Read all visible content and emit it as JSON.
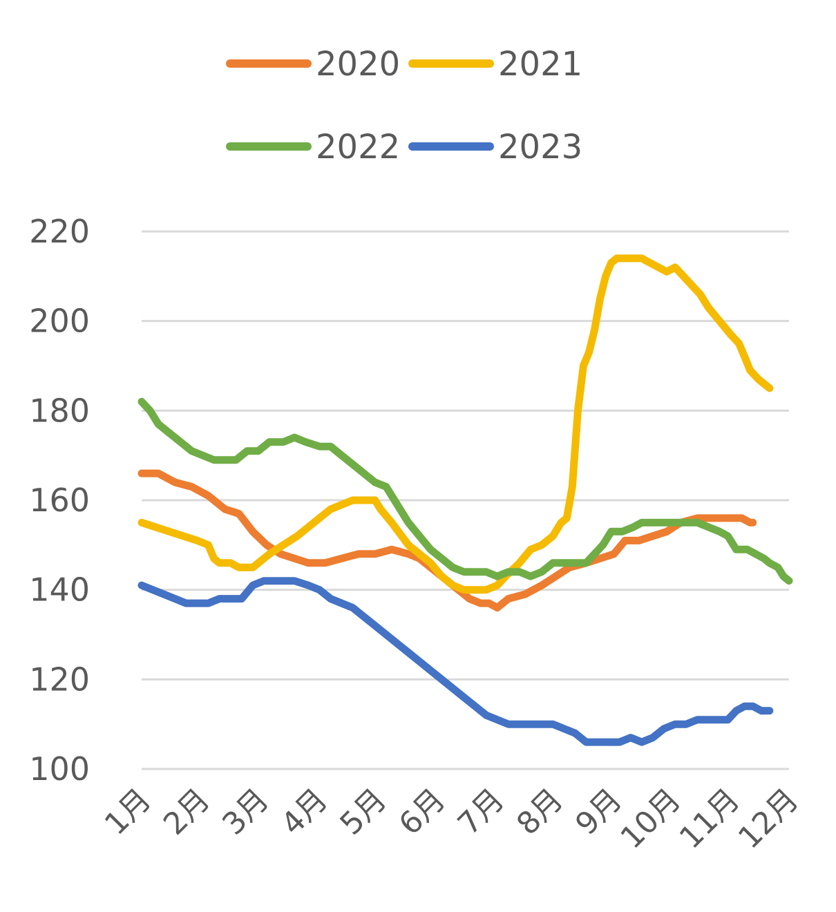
{
  "chart_data": {
    "type": "line",
    "title": "",
    "xlabel": "",
    "ylabel": "",
    "categories": [
      "1月",
      "2月",
      "3月",
      "4月",
      "5月",
      "6月",
      "7月",
      "8月",
      "9月",
      "10月",
      "11月",
      "12月"
    ],
    "y_ticks": [
      "100",
      "120",
      "140",
      "160",
      "180",
      "200",
      "220"
    ],
    "ylim": [
      100,
      220
    ],
    "grid": "horizontal",
    "legend_position": "top-center",
    "series": [
      {
        "name": "2020",
        "color": "#ed7d31",
        "points": [
          [
            1.0,
            166
          ],
          [
            1.3,
            166
          ],
          [
            1.6,
            164
          ],
          [
            1.9,
            163
          ],
          [
            2.2,
            161
          ],
          [
            2.5,
            158
          ],
          [
            2.75,
            157
          ],
          [
            3.0,
            153
          ],
          [
            3.25,
            150
          ],
          [
            3.5,
            148
          ],
          [
            3.75,
            147
          ],
          [
            4.0,
            146
          ],
          [
            4.3,
            146
          ],
          [
            4.6,
            147
          ],
          [
            4.9,
            148
          ],
          [
            5.2,
            148
          ],
          [
            5.5,
            149
          ],
          [
            5.8,
            148
          ],
          [
            6.0,
            147
          ],
          [
            6.3,
            144
          ],
          [
            6.6,
            141
          ],
          [
            6.9,
            138
          ],
          [
            7.1,
            137
          ],
          [
            7.25,
            137
          ],
          [
            7.4,
            136
          ],
          [
            7.6,
            138
          ],
          [
            7.9,
            139
          ],
          [
            8.2,
            141
          ],
          [
            8.45,
            143
          ],
          [
            8.7,
            145
          ],
          [
            9.0,
            146
          ],
          [
            9.25,
            147
          ],
          [
            9.5,
            148
          ],
          [
            9.7,
            151
          ],
          [
            9.95,
            151
          ],
          [
            10.2,
            152
          ],
          [
            10.45,
            153
          ],
          [
            10.7,
            155
          ],
          [
            11.0,
            156
          ],
          [
            11.3,
            156
          ],
          [
            11.6,
            156
          ],
          [
            11.8,
            156
          ],
          [
            11.95,
            155
          ],
          [
            12.0,
            155
          ]
        ]
      },
      {
        "name": "2021",
        "color": "#f5bb00",
        "points": [
          [
            1.0,
            155
          ],
          [
            1.25,
            154
          ],
          [
            1.5,
            153
          ],
          [
            1.75,
            152
          ],
          [
            2.0,
            151
          ],
          [
            2.2,
            150
          ],
          [
            2.3,
            147
          ],
          [
            2.4,
            146
          ],
          [
            2.6,
            146
          ],
          [
            2.75,
            145
          ],
          [
            3.0,
            145
          ],
          [
            3.1,
            146
          ],
          [
            3.3,
            148
          ],
          [
            3.55,
            150
          ],
          [
            3.8,
            152
          ],
          [
            4.0,
            154
          ],
          [
            4.2,
            156
          ],
          [
            4.4,
            158
          ],
          [
            4.6,
            159
          ],
          [
            4.8,
            160
          ],
          [
            5.0,
            160
          ],
          [
            5.2,
            160
          ],
          [
            5.3,
            158
          ],
          [
            5.5,
            155
          ],
          [
            5.8,
            150
          ],
          [
            6.0,
            148
          ],
          [
            6.2,
            146
          ],
          [
            6.4,
            143
          ],
          [
            6.6,
            141
          ],
          [
            6.8,
            140
          ],
          [
            7.0,
            140
          ],
          [
            7.2,
            140
          ],
          [
            7.4,
            141
          ],
          [
            7.55,
            143
          ],
          [
            7.8,
            146
          ],
          [
            8.0,
            149
          ],
          [
            8.2,
            150
          ],
          [
            8.4,
            152
          ],
          [
            8.55,
            155
          ],
          [
            8.65,
            156
          ],
          [
            8.75,
            163
          ],
          [
            8.85,
            180
          ],
          [
            8.95,
            190
          ],
          [
            9.05,
            193
          ],
          [
            9.15,
            198
          ],
          [
            9.25,
            205
          ],
          [
            9.35,
            210
          ],
          [
            9.45,
            213
          ],
          [
            9.55,
            214
          ],
          [
            9.75,
            214
          ],
          [
            10.0,
            214
          ],
          [
            10.15,
            213
          ],
          [
            10.3,
            212
          ],
          [
            10.45,
            211
          ],
          [
            10.6,
            212
          ],
          [
            10.75,
            210
          ],
          [
            10.9,
            208
          ],
          [
            11.05,
            206
          ],
          [
            11.2,
            203
          ],
          [
            11.4,
            200
          ],
          [
            11.6,
            197
          ],
          [
            11.75,
            195
          ],
          [
            11.85,
            192
          ],
          [
            11.95,
            189
          ],
          [
            12.1,
            187
          ],
          [
            12.2,
            186
          ],
          [
            12.3,
            185
          ]
        ]
      },
      {
        "name": "2022",
        "color": "#70ad47",
        "points": [
          [
            1.0,
            182
          ],
          [
            1.15,
            180
          ],
          [
            1.3,
            177
          ],
          [
            1.5,
            175
          ],
          [
            1.7,
            173
          ],
          [
            1.9,
            171
          ],
          [
            2.1,
            170
          ],
          [
            2.3,
            169
          ],
          [
            2.5,
            169
          ],
          [
            2.7,
            169
          ],
          [
            2.9,
            171
          ],
          [
            3.1,
            171
          ],
          [
            3.3,
            173
          ],
          [
            3.55,
            173
          ],
          [
            3.75,
            174
          ],
          [
            3.95,
            173
          ],
          [
            4.2,
            172
          ],
          [
            4.4,
            172
          ],
          [
            4.6,
            170
          ],
          [
            4.8,
            168
          ],
          [
            5.0,
            166
          ],
          [
            5.2,
            164
          ],
          [
            5.4,
            163
          ],
          [
            5.6,
            159
          ],
          [
            5.8,
            155
          ],
          [
            6.0,
            152
          ],
          [
            6.2,
            149
          ],
          [
            6.4,
            147
          ],
          [
            6.6,
            145
          ],
          [
            6.8,
            144
          ],
          [
            7.0,
            144
          ],
          [
            7.2,
            144
          ],
          [
            7.4,
            143
          ],
          [
            7.6,
            144
          ],
          [
            7.8,
            144
          ],
          [
            8.0,
            143
          ],
          [
            8.2,
            144
          ],
          [
            8.4,
            146
          ],
          [
            8.6,
            146
          ],
          [
            8.8,
            146
          ],
          [
            9.0,
            146
          ],
          [
            9.15,
            148
          ],
          [
            9.3,
            150
          ],
          [
            9.45,
            153
          ],
          [
            9.65,
            153
          ],
          [
            9.85,
            154
          ],
          [
            10.0,
            155
          ],
          [
            10.2,
            155
          ],
          [
            10.5,
            155
          ],
          [
            10.8,
            155
          ],
          [
            11.0,
            155
          ],
          [
            11.2,
            154
          ],
          [
            11.4,
            153
          ],
          [
            11.55,
            152
          ],
          [
            11.7,
            149
          ],
          [
            11.9,
            149
          ],
          [
            12.05,
            148
          ],
          [
            12.2,
            147
          ],
          [
            12.3,
            146
          ],
          [
            12.45,
            145
          ],
          [
            12.55,
            143
          ],
          [
            12.65,
            142
          ]
        ]
      },
      {
        "name": "2023",
        "color": "#4472c4",
        "points": [
          [
            1.0,
            141
          ],
          [
            1.2,
            140
          ],
          [
            1.4,
            139
          ],
          [
            1.6,
            138
          ],
          [
            1.8,
            137
          ],
          [
            2.0,
            137
          ],
          [
            2.2,
            137
          ],
          [
            2.4,
            138
          ],
          [
            2.6,
            138
          ],
          [
            2.8,
            138
          ],
          [
            3.0,
            141
          ],
          [
            3.2,
            142
          ],
          [
            3.4,
            142
          ],
          [
            3.55,
            142
          ],
          [
            3.75,
            142
          ],
          [
            4.0,
            141
          ],
          [
            4.2,
            140
          ],
          [
            4.4,
            138
          ],
          [
            4.6,
            137
          ],
          [
            4.8,
            136
          ],
          [
            5.0,
            134
          ],
          [
            5.2,
            132
          ],
          [
            5.4,
            130
          ],
          [
            5.6,
            128
          ],
          [
            5.8,
            126
          ],
          [
            6.0,
            124
          ],
          [
            6.2,
            122
          ],
          [
            6.4,
            120
          ],
          [
            6.6,
            118
          ],
          [
            6.8,
            116
          ],
          [
            7.0,
            114
          ],
          [
            7.2,
            112
          ],
          [
            7.4,
            111
          ],
          [
            7.6,
            110
          ],
          [
            7.8,
            110
          ],
          [
            8.0,
            110
          ],
          [
            8.2,
            110
          ],
          [
            8.4,
            110
          ],
          [
            8.6,
            109
          ],
          [
            8.8,
            108
          ],
          [
            9.0,
            106
          ],
          [
            9.2,
            106
          ],
          [
            9.4,
            106
          ],
          [
            9.6,
            106
          ],
          [
            9.8,
            107
          ],
          [
            10.0,
            106
          ],
          [
            10.2,
            107
          ],
          [
            10.4,
            109
          ],
          [
            10.6,
            110
          ],
          [
            10.8,
            110
          ],
          [
            11.0,
            111
          ],
          [
            11.2,
            111
          ],
          [
            11.4,
            111
          ],
          [
            11.55,
            111
          ],
          [
            11.7,
            113
          ],
          [
            11.85,
            114
          ],
          [
            12.0,
            114
          ],
          [
            12.15,
            113
          ],
          [
            12.3,
            113
          ]
        ]
      }
    ]
  }
}
